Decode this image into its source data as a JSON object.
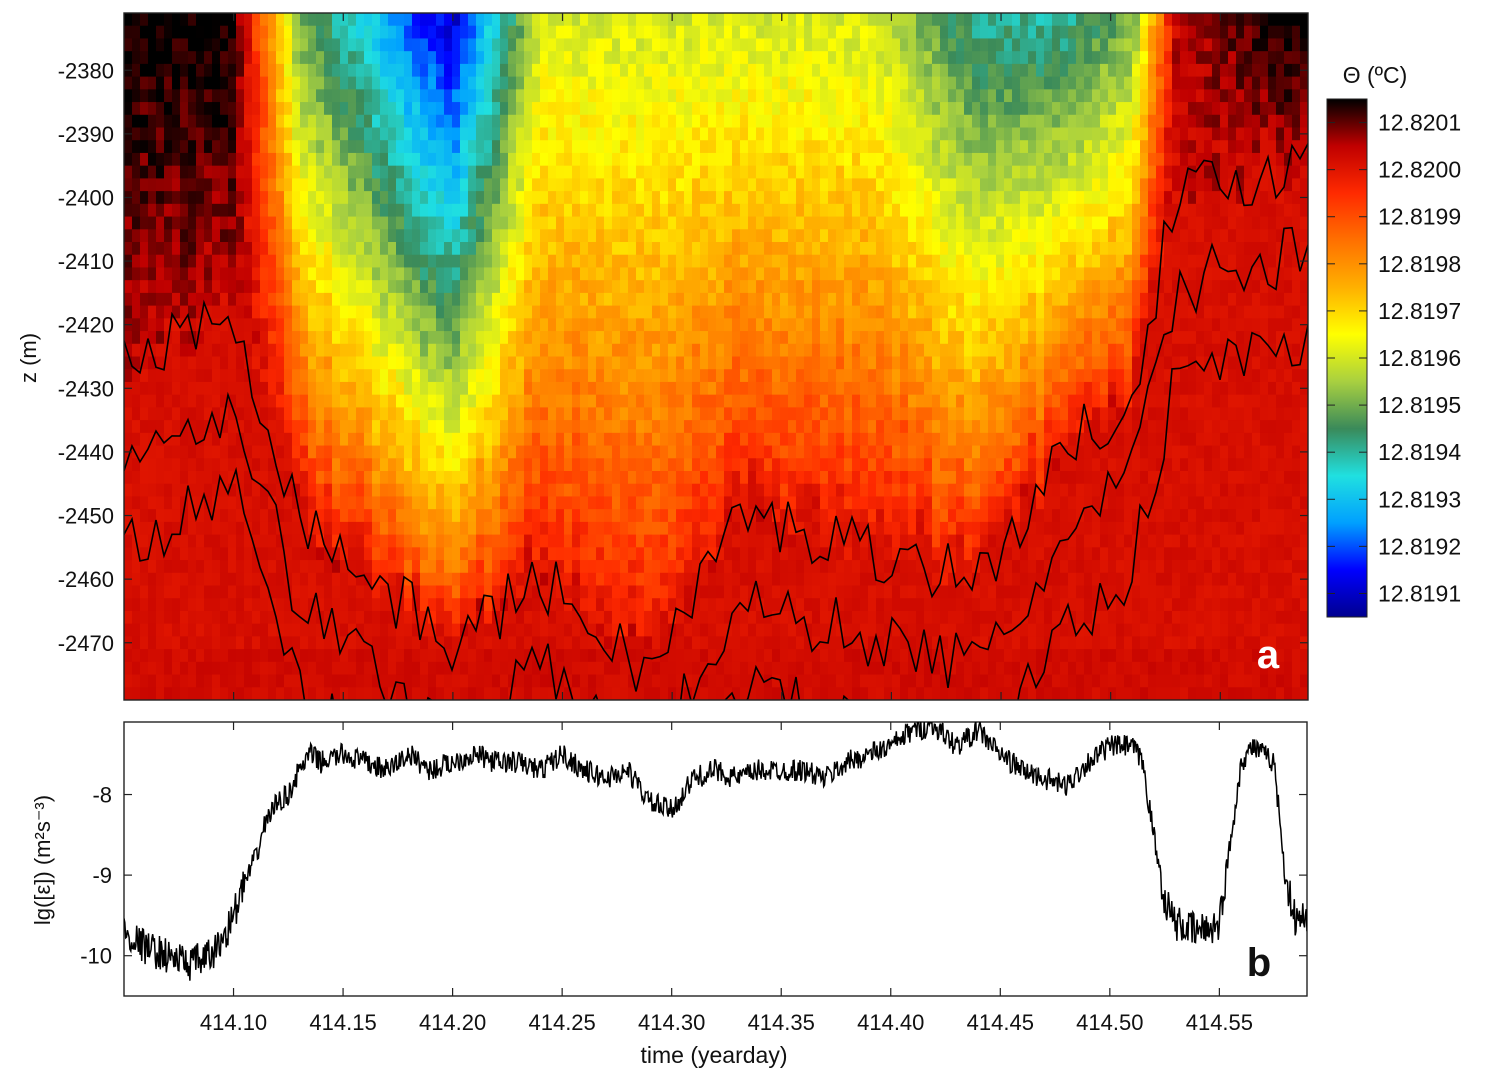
{
  "chart_data": [
    {
      "type": "heatmap",
      "panel_label": "a",
      "ylabel": "z (m)",
      "yticks": [
        -2380,
        -2390,
        -2400,
        -2410,
        -2420,
        -2430,
        -2440,
        -2450,
        -2460,
        -2470
      ],
      "ylim": [
        -2479,
        -2371
      ],
      "xlim": [
        414.05,
        414.59
      ],
      "colorbar": {
        "label": "Θ (ºC)",
        "ticks": [
          "12.8201",
          "12.8200",
          "12.8199",
          "12.8198",
          "12.8197",
          "12.8196",
          "12.8195",
          "12.8194",
          "12.8193",
          "12.8192",
          "12.8191"
        ],
        "range": [
          12.81905,
          12.82015
        ],
        "colormap": [
          "#00008f",
          "#0000ff",
          "#00a0ff",
          "#20e0e0",
          "#3a8a5a",
          "#a8d040",
          "#ffff00",
          "#ffb000",
          "#ff7000",
          "#ff2a00",
          "#c00000",
          "#000000"
        ]
      },
      "contours": "black isotherm contours",
      "description_profile": [
        {
          "x": 414.06,
          "top_temp": 12.82015,
          "base_depth": -2425
        },
        {
          "x": 414.1,
          "top_temp": 12.82015,
          "base_depth": -2418
        },
        {
          "x": 414.13,
          "top_temp": 12.8195,
          "base_depth": -2450
        },
        {
          "x": 414.18,
          "top_temp": 12.8192,
          "base_depth": -2465
        },
        {
          "x": 414.2,
          "top_temp": 12.8191,
          "base_depth": -2470
        },
        {
          "x": 414.24,
          "top_temp": 12.8196,
          "base_depth": -2460
        },
        {
          "x": 414.29,
          "top_temp": 12.8196,
          "base_depth": -2475
        },
        {
          "x": 414.33,
          "top_temp": 12.8196,
          "base_depth": -2450
        },
        {
          "x": 414.39,
          "top_temp": 12.8196,
          "base_depth": -2455
        },
        {
          "x": 414.44,
          "top_temp": 12.8194,
          "base_depth": -2460
        },
        {
          "x": 414.48,
          "top_temp": 12.8194,
          "base_depth": -2440
        },
        {
          "x": 414.51,
          "top_temp": 12.8195,
          "base_depth": -2430
        },
        {
          "x": 414.53,
          "top_temp": 12.82005,
          "base_depth": -2400
        },
        {
          "x": 414.58,
          "top_temp": 12.82015,
          "base_depth": -2395
        }
      ]
    },
    {
      "type": "line",
      "panel_label": "b",
      "xlabel": "time (yearday)",
      "ylabel": "lg([ε]) (m²s⁻³)",
      "ylim": [
        -10.5,
        -7.1
      ],
      "yticks": [
        -8,
        -9,
        -10
      ],
      "xlim": [
        414.05,
        414.59
      ],
      "xticks": [
        "414.10",
        "414.15",
        "414.20",
        "414.25",
        "414.30",
        "414.35",
        "414.40",
        "414.45",
        "414.50",
        "414.55"
      ],
      "series": [
        {
          "x": [
            414.05,
            414.06,
            414.07,
            414.08,
            414.09,
            414.095,
            414.1,
            414.105,
            414.11,
            414.115,
            414.12,
            414.125,
            414.13,
            414.135,
            414.14,
            414.15,
            414.16,
            414.17,
            414.18,
            414.19,
            414.2,
            414.21,
            414.22,
            414.23,
            414.24,
            414.25,
            414.26,
            414.27,
            414.28,
            414.29,
            414.3,
            414.31,
            414.32,
            414.33,
            414.34,
            414.35,
            414.36,
            414.37,
            414.38,
            414.39,
            414.4,
            414.41,
            414.42,
            414.43,
            414.44,
            414.45,
            414.46,
            414.47,
            414.48,
            414.49,
            414.5,
            414.51,
            414.515,
            414.52,
            414.525,
            414.53,
            414.54,
            414.55,
            414.555,
            414.56,
            414.565,
            414.57,
            414.575,
            414.58,
            414.585,
            414.59
          ],
          "y": [
            -9.7,
            -9.9,
            -10.0,
            -10.1,
            -10.0,
            -9.8,
            -9.5,
            -9.1,
            -8.8,
            -8.3,
            -8.1,
            -8.0,
            -7.7,
            -7.5,
            -7.6,
            -7.5,
            -7.6,
            -7.7,
            -7.5,
            -7.7,
            -7.6,
            -7.5,
            -7.6,
            -7.6,
            -7.7,
            -7.5,
            -7.7,
            -7.8,
            -7.7,
            -8.1,
            -8.2,
            -7.8,
            -7.7,
            -7.8,
            -7.7,
            -7.7,
            -7.7,
            -7.8,
            -7.6,
            -7.5,
            -7.4,
            -7.2,
            -7.15,
            -7.4,
            -7.2,
            -7.5,
            -7.7,
            -7.8,
            -7.9,
            -7.6,
            -7.4,
            -7.4,
            -7.6,
            -8.5,
            -9.3,
            -9.6,
            -9.7,
            -9.6,
            -8.6,
            -7.6,
            -7.4,
            -7.5,
            -7.6,
            -9.0,
            -9.6,
            -9.5
          ]
        }
      ]
    }
  ]
}
